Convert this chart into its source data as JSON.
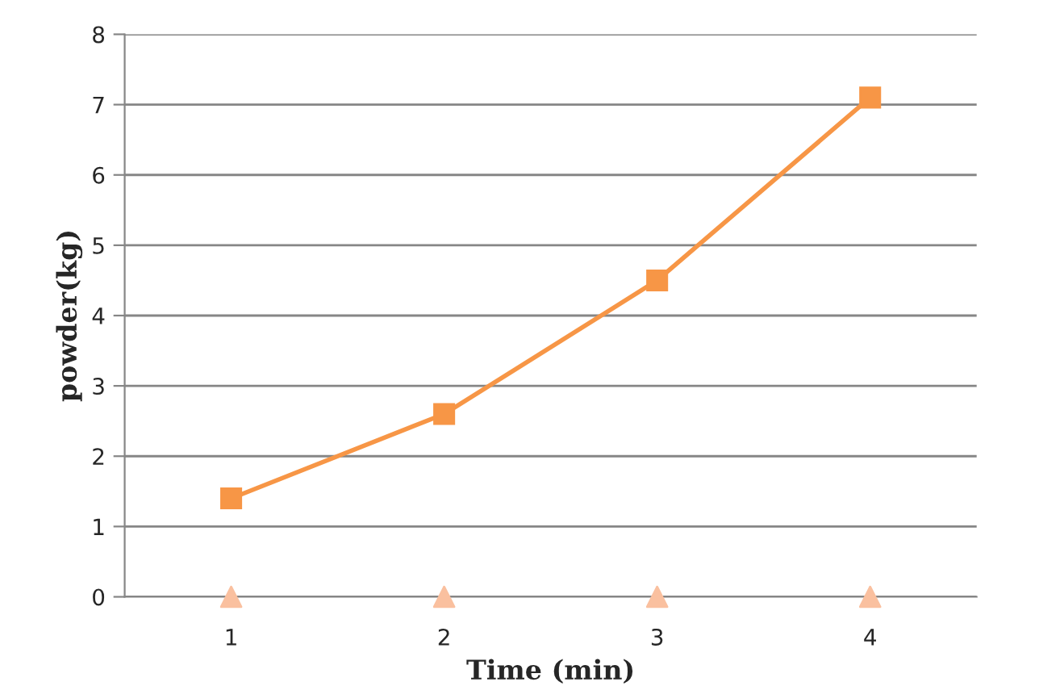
{
  "chart_data": {
    "type": "line",
    "xlabel": "Time (min)",
    "ylabel": "powder(kg)",
    "categories": [
      "1",
      "2",
      "3",
      "4"
    ],
    "series": [
      {
        "color": "#f79646",
        "values": [
          1.4,
          2.6,
          4.5,
          7.1
        ],
        "marker": "square"
      },
      {
        "type": "scatter",
        "color": "#fac09f",
        "values": [
          0,
          0,
          0,
          0
        ],
        "marker": "triangle"
      }
    ],
    "ylim": [
      0,
      8
    ],
    "yticks": [
      0,
      1,
      2,
      3,
      4,
      5,
      6,
      7,
      8
    ],
    "grid": "y",
    "line_style": "solid"
  }
}
